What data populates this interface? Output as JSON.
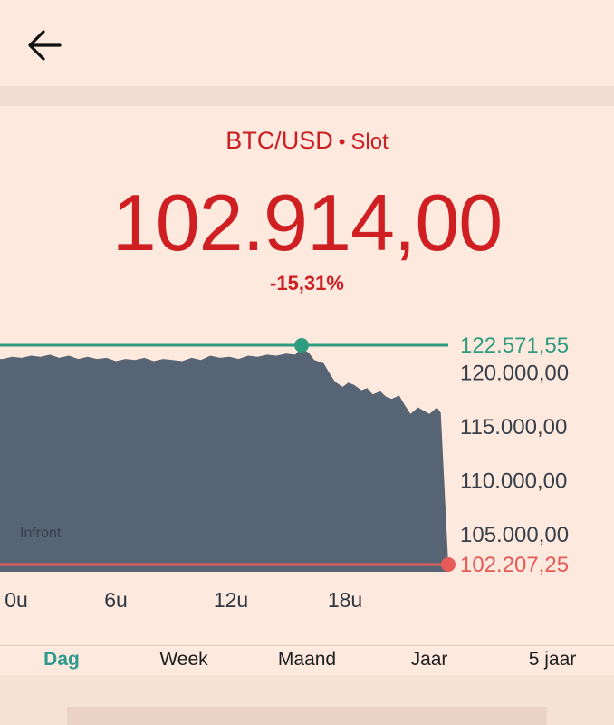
{
  "header": {
    "back_icon": "arrow-left-icon"
  },
  "instrument": {
    "pair": "BTC/USD",
    "separator": "•",
    "status": "Slot",
    "price": "102.914,00",
    "change": "-15,31%"
  },
  "chart_data": {
    "type": "area",
    "high_label": "122.571,55",
    "low_label": "102.207,25",
    "high_value": 122571.55,
    "low_value": 102207.25,
    "y_ticks": [
      {
        "label": "120.000,00",
        "value": 120000
      },
      {
        "label": "115.000,00",
        "value": 115000
      },
      {
        "label": "110.000,00",
        "value": 110000
      },
      {
        "label": "105.000,00",
        "value": 105000
      }
    ],
    "x_ticks": [
      {
        "label": "0u",
        "hour": 0
      },
      {
        "label": "6u",
        "hour": 6
      },
      {
        "label": "12u",
        "hour": 12
      },
      {
        "label": "18u",
        "hour": 18
      }
    ],
    "ylim": [
      101700,
      124500
    ],
    "xlim": [
      0,
      23.6
    ],
    "x": [
      0,
      0.5,
      1,
      1.5,
      2,
      2.5,
      3,
      3.5,
      4,
      4.5,
      5,
      5.5,
      6,
      6.5,
      7,
      7.5,
      8,
      8.5,
      9,
      9.5,
      10,
      10.5,
      11,
      11.5,
      12,
      12.5,
      13,
      13.5,
      14,
      14.5,
      15,
      15.5,
      15.8,
      16.2,
      16.5,
      17,
      17.3,
      17.6,
      18,
      18.3,
      18.6,
      19,
      19.3,
      19.6,
      20,
      20.3,
      20.6,
      21,
      21.3,
      21.6,
      22,
      22.3,
      22.6,
      23,
      23.2,
      23.6
    ],
    "y": [
      121300,
      121500,
      121400,
      121600,
      121500,
      121700,
      121400,
      121600,
      121300,
      121500,
      121300,
      121400,
      121100,
      121300,
      121200,
      121400,
      121100,
      121300,
      121200,
      121100,
      121400,
      121200,
      121600,
      121400,
      121500,
      121300,
      121600,
      121500,
      121700,
      121600,
      121800,
      121700,
      122300,
      121900,
      121200,
      120900,
      120000,
      119200,
      118700,
      119100,
      118900,
      118400,
      118600,
      118000,
      118300,
      117800,
      117600,
      117900,
      117000,
      116200,
      116800,
      116500,
      116200,
      116800,
      116300,
      102207
    ],
    "colors": {
      "area": "#566473",
      "high": "#2f9c80",
      "low": "#e65a57",
      "tick": "#37404b",
      "xtick": "#2d3640"
    }
  },
  "watermark": "Infront",
  "tabs": [
    {
      "label": "Dag",
      "active": true
    },
    {
      "label": "Week",
      "active": false
    },
    {
      "label": "Maand",
      "active": false
    },
    {
      "label": "Jaar",
      "active": false
    },
    {
      "label": "5 jaar",
      "active": false
    }
  ]
}
